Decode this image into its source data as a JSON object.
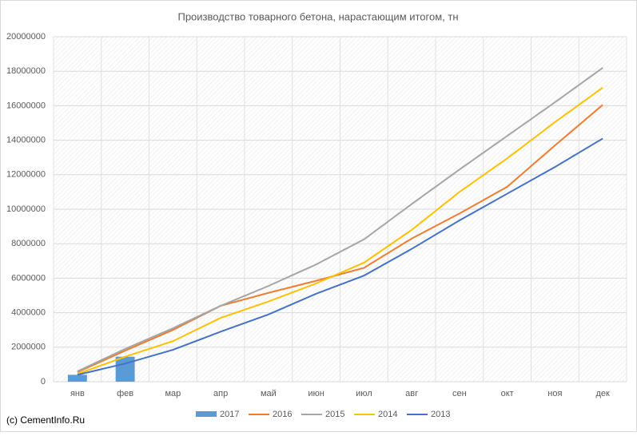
{
  "chart_data": {
    "type": "line",
    "title": "Производство товарного бетона, нарастающим итогом, тн",
    "credit": "(c) CementInfo.Ru",
    "categories": [
      "янв",
      "фев",
      "мар",
      "апр",
      "май",
      "июн",
      "июл",
      "авг",
      "сен",
      "окт",
      "ноя",
      "дек"
    ],
    "series": [
      {
        "name": "2017",
        "type": "bar",
        "color": "#5b9bd5",
        "values": [
          400000,
          1450000,
          null,
          null,
          null,
          null,
          null,
          null,
          null,
          null,
          null,
          null
        ]
      },
      {
        "name": "2016",
        "color": "#ed7d31",
        "values": [
          550000,
          1800000,
          3000000,
          4400000,
          5150000,
          5850000,
          6600000,
          8300000,
          9750000,
          11300000,
          13700000,
          16050000
        ]
      },
      {
        "name": "2015",
        "color": "#a5a5a5",
        "values": [
          600000,
          1900000,
          3100000,
          4400000,
          5550000,
          6800000,
          8250000,
          10300000,
          12300000,
          14250000,
          16200000,
          18200000
        ]
      },
      {
        "name": "2014",
        "color": "#ffc000",
        "values": [
          450000,
          1450000,
          2350000,
          3700000,
          4650000,
          5700000,
          6900000,
          8800000,
          11000000,
          12950000,
          15050000,
          17050000
        ]
      },
      {
        "name": "2013",
        "color": "#4472c4",
        "values": [
          400000,
          1050000,
          1850000,
          2900000,
          3900000,
          5100000,
          6150000,
          7700000,
          9350000,
          10900000,
          12450000,
          14100000
        ]
      }
    ],
    "ylim": [
      0,
      20000000
    ],
    "yticks": [
      0,
      2000000,
      4000000,
      6000000,
      8000000,
      10000000,
      12000000,
      14000000,
      16000000,
      18000000,
      20000000
    ],
    "grid": true,
    "legend": "bottom"
  }
}
